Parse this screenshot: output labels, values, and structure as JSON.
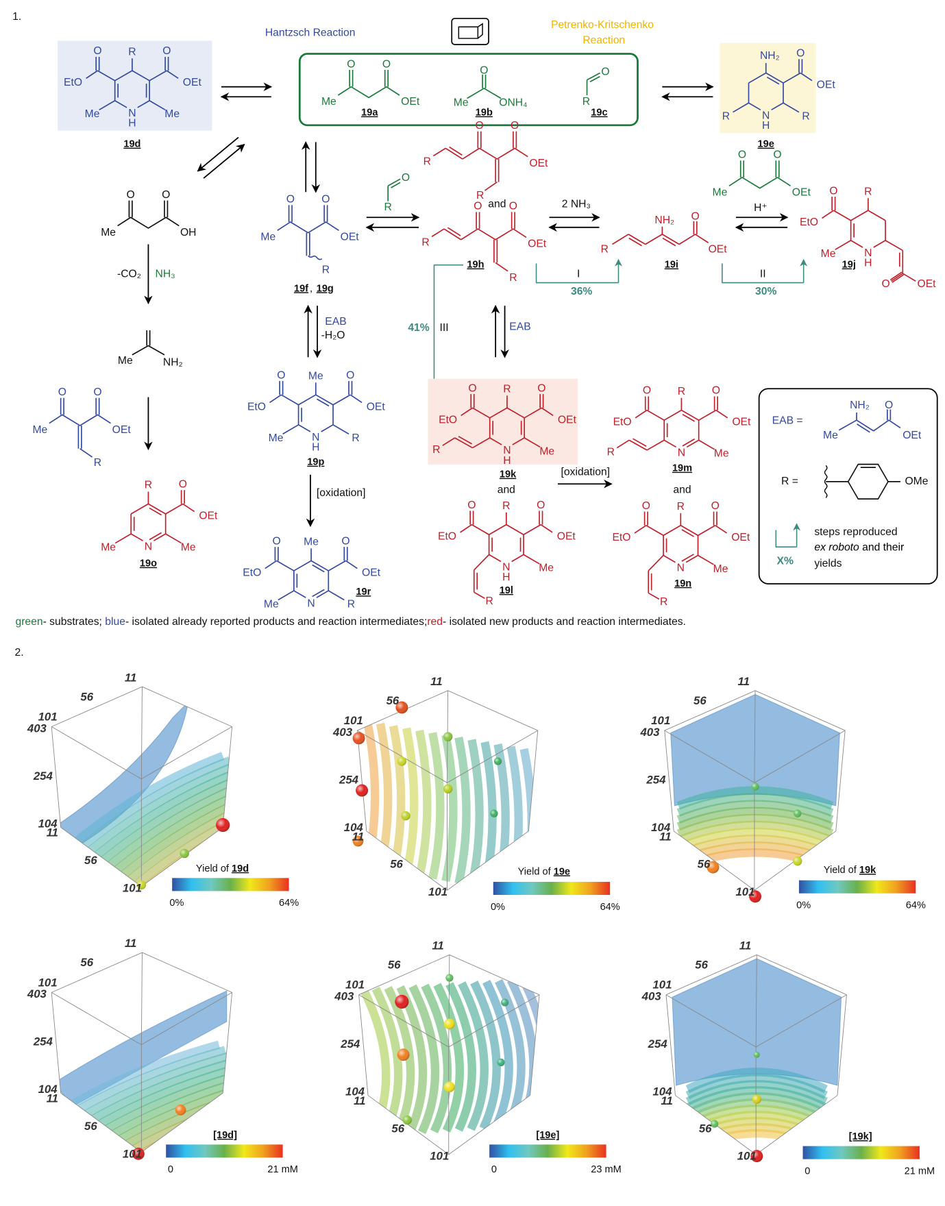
{
  "part1": {
    "label": "1.",
    "hantzsch": "Hantzsch Reaction",
    "petrenko": [
      "Petrenko-Kritschenko",
      "Reaction"
    ]
  },
  "atoms": {
    "O": "O",
    "OEt": "OEt",
    "EtO": "EtO",
    "Me": "Me",
    "R": "R",
    "N": "N",
    "H": "H",
    "NH2": "NH₂",
    "ONH4": "ONH₄",
    "OH": "OH",
    "OMe": "OMe"
  },
  "compounds": {
    "c19a": "19a",
    "c19b": "19b",
    "c19c": "19c",
    "c19d": "19d",
    "c19e": "19e",
    "c19f": "19f",
    "c19g": "19g",
    "c19h": "19h",
    "c19i": "19i",
    "c19j": "19j",
    "c19k": "19k",
    "c19l": "19l",
    "c19m": "19m",
    "c19n": "19n",
    "c19o": "19o",
    "c19p": "19p",
    "c19r": "19r",
    "comma": ","
  },
  "conditions": {
    "minus_co2": "-CO₂",
    "nh3": "NH₃",
    "eab": "EAB",
    "minus_h2o": "-H₂O",
    "oxidation": "[oxidation]",
    "two_nh3": "2 NH₃",
    "h_plus": "H⁺",
    "and": "and"
  },
  "steps": [
    {
      "label": "I",
      "yield": "36%"
    },
    {
      "label": "II",
      "yield": "30%"
    },
    {
      "label": "III",
      "yield": "41%"
    }
  ],
  "legend_box": {
    "eab_eq": "EAB  =",
    "r_eq": "R  =",
    "x_percent": "X%",
    "line1": "steps reproduced",
    "line2_italic": "ex roboto",
    "line2_rest": " and their",
    "line3": "yields"
  },
  "footnote": [
    {
      "text": "green",
      "color": "#1b7a3a"
    },
    {
      "text": "- substrates; ",
      "color": "#111111"
    },
    {
      "text": "blue",
      "color": "#3349a0"
    },
    {
      "text": "- isolated already reported products and reaction intermediates;",
      "color": "#111111"
    },
    {
      "text": "red",
      "color": "#c0202a"
    },
    {
      "text": "- isolated new products and reaction intermediates.",
      "color": "#111111"
    }
  ],
  "colors": {
    "substrate": "#1b7a3a",
    "reported": "#3349a0",
    "new": "#c0202a",
    "step": "#3d8a80",
    "petrenko": "#f0b400",
    "box19d": "#e6ebf5",
    "box19e": "#fdf6d6",
    "box19k": "#fbe8e3"
  },
  "part2": {
    "label": "2.",
    "colorscale": [
      "#3050a0",
      "#30c0f0",
      "#70c8c0",
      "#6ab04c",
      "#f0e81a",
      "#f0a020",
      "#e83020"
    ],
    "plots": [
      {
        "ticks": [
          "11",
          "56",
          "101",
          "403",
          "254",
          "104",
          "11",
          "56",
          "101"
        ],
        "colorbar": {
          "prefix": "Yield of ",
          "compound": "19d",
          "brackets": false,
          "min": "0%",
          "max": "64%"
        }
      },
      {
        "ticks": [
          "11",
          "56",
          "101",
          "403",
          "254",
          "104",
          "11",
          "56",
          "101"
        ],
        "colorbar": {
          "prefix": "Yield of ",
          "compound": "19e",
          "brackets": false,
          "min": "0%",
          "max": "64%"
        }
      },
      {
        "ticks": [
          "11",
          "56",
          "101",
          "403",
          "254",
          "104",
          "11",
          "56",
          "101"
        ],
        "colorbar": {
          "prefix": "Yield of ",
          "compound": "19k",
          "brackets": false,
          "min": "0%",
          "max": "64%"
        }
      },
      {
        "ticks": [
          "11",
          "56",
          "101",
          "403",
          "254",
          "104",
          "11",
          "56",
          "101"
        ],
        "colorbar": {
          "prefix": "",
          "compound": "[19d]",
          "brackets": true,
          "min": "0",
          "max": "21 mM"
        }
      },
      {
        "ticks": [
          "11",
          "56",
          "101",
          "403",
          "254",
          "104",
          "11",
          "56",
          "101"
        ],
        "colorbar": {
          "prefix": "",
          "compound": "[19e]",
          "brackets": true,
          "min": "0",
          "max": "23 mM"
        }
      },
      {
        "ticks": [
          "11",
          "56",
          "101",
          "403",
          "254",
          "104",
          "11",
          "56",
          "101"
        ],
        "colorbar": {
          "prefix": "",
          "compound": "[19k]",
          "brackets": true,
          "min": "0",
          "max": "21 mM"
        }
      }
    ]
  }
}
